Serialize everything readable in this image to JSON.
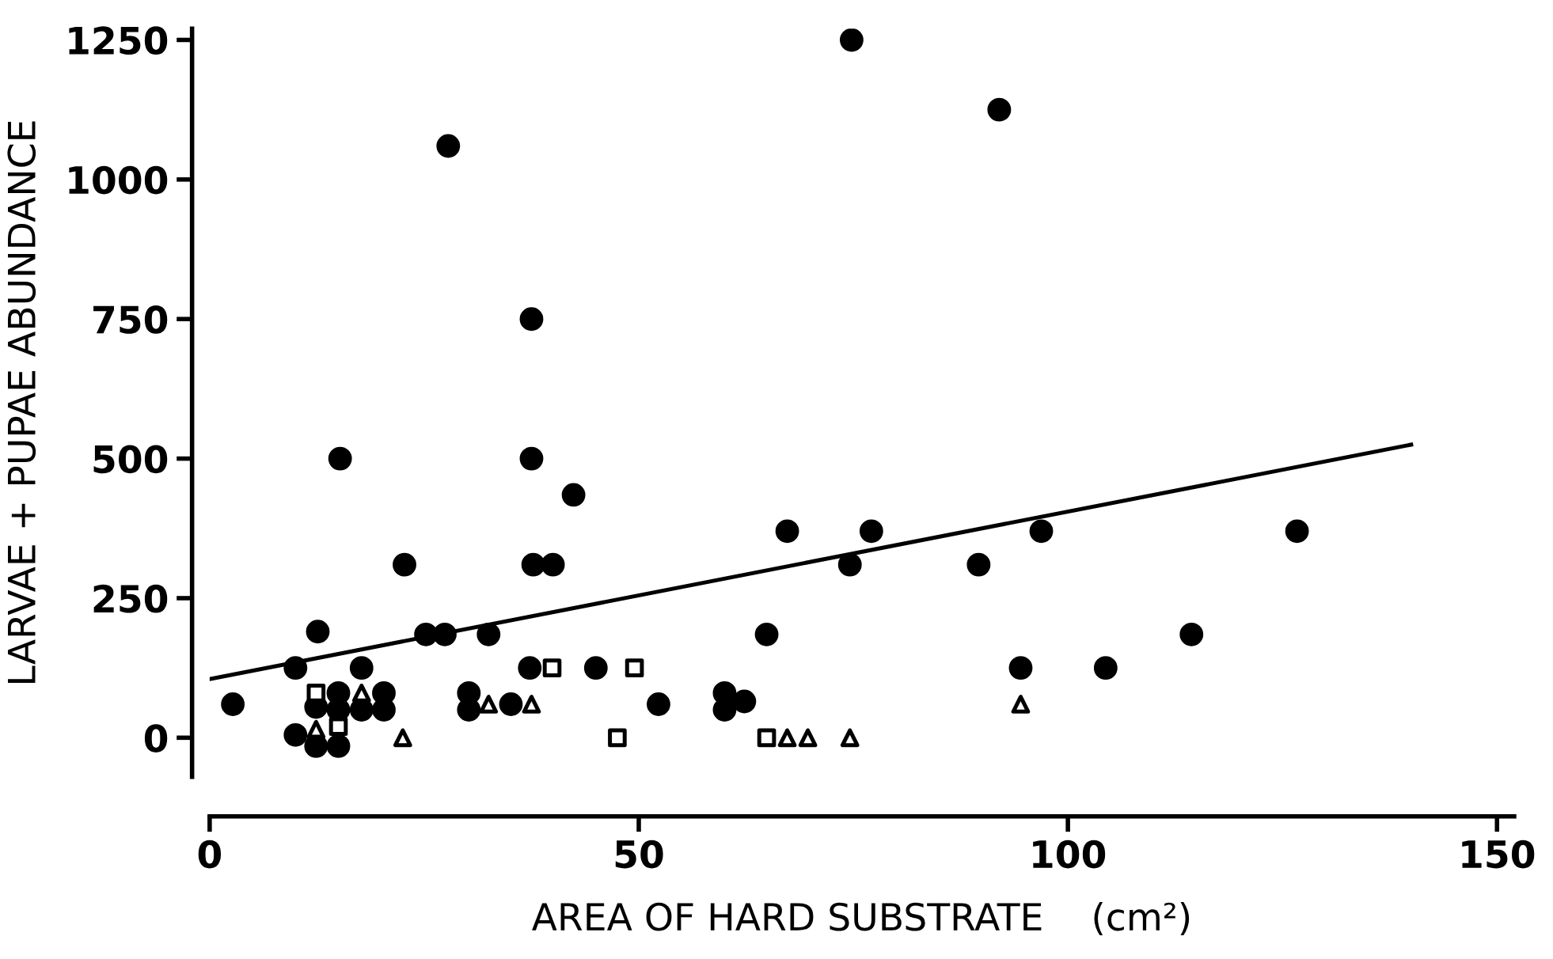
{
  "chart_data": {
    "type": "scatter",
    "xlabel": "AREA OF HARD SUBSTRATE    (cm²)",
    "ylabel": "LARVAE + PUPAE ABUNDANCE",
    "xlim": [
      0,
      152
    ],
    "ylim": [
      -70,
      1270
    ],
    "xticks": [
      0,
      50,
      100,
      150
    ],
    "yticks": [
      0,
      250,
      500,
      750,
      1000,
      1250
    ],
    "grid": false,
    "legend": false,
    "series": [
      {
        "marker": "circle",
        "color": "#000000",
        "x": [
          12.6,
          25.2,
          27.4,
          32.5,
          10,
          17.7,
          37.3,
          45,
          2.7,
          12.4,
          15,
          15,
          17.7,
          20.3,
          20.3,
          30.2,
          30.2,
          35.1,
          52.3,
          10,
          12.4,
          15,
          67.3,
          77.1,
          96.9,
          126.7,
          74.6,
          89.6,
          64.9,
          114.4,
          94.5,
          104.4,
          60,
          60,
          62.3,
          74.8,
          27.8,
          37.5,
          15.2,
          37.5,
          42.4,
          22.7,
          37.7,
          40,
          92
        ],
        "values": [
          190,
          185,
          185,
          185,
          125,
          125,
          125,
          125,
          60,
          55,
          80,
          50,
          50,
          80,
          50,
          80,
          50,
          60,
          60,
          5,
          -15,
          -15,
          370,
          370,
          370,
          370,
          310,
          310,
          185,
          185,
          125,
          125,
          80,
          50,
          65,
          1250,
          1060,
          750,
          500,
          500,
          435,
          310,
          310,
          310,
          1125
        ]
      },
      {
        "marker": "square",
        "color": "#000000",
        "x": [
          12.4,
          15,
          39.9,
          49.5,
          47.5,
          64.9
        ],
        "values": [
          80,
          20,
          125,
          125,
          0,
          0
        ]
      },
      {
        "marker": "triangle",
        "color": "#000000",
        "x": [
          17.7,
          12.4,
          22.5,
          32.5,
          37.5,
          94.5,
          67.3,
          69.7,
          74.6
        ],
        "values": [
          80,
          15,
          0,
          60,
          60,
          60,
          0,
          0,
          0
        ]
      },
      {
        "type": "line",
        "marker": "none",
        "line_style": "solid",
        "color": "#000000",
        "x": [
          0,
          140
        ],
        "values": [
          105,
          525
        ]
      }
    ]
  }
}
